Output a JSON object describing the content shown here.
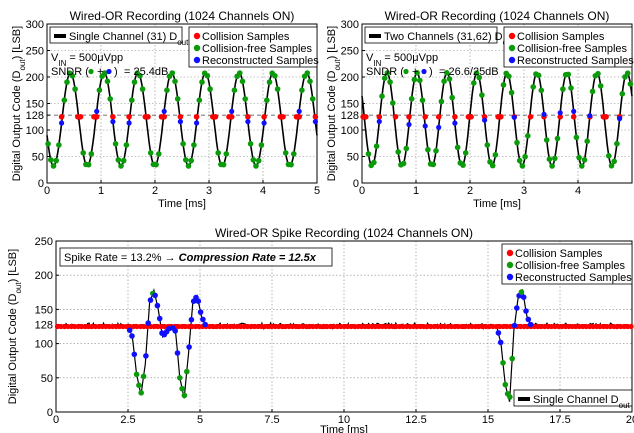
{
  "chart_data": [
    {
      "type": "line",
      "title": "Wired-OR Recording (1024 Channels ON)",
      "xlabel": "Time [ms]",
      "ylabel": "Digital Output Code (D_out) [LSB]",
      "xlim": [
        0,
        5
      ],
      "ylim": [
        0,
        300
      ],
      "xticks": [
        "0",
        "1",
        "2",
        "3",
        "4",
        "5"
      ],
      "yticks": [
        "0",
        "50",
        "100",
        "128",
        "150",
        "200",
        "250",
        "300"
      ],
      "grid": true,
      "reference_line": 128,
      "signal": {
        "type": "sine",
        "offset": 120,
        "amplitude": 88,
        "frequency_khz": 1.6,
        "phase_deg": 200
      },
      "legend": {
        "position": "top-left",
        "entries": [
          {
            "label": "Single Channel (31) D",
            "sub": "out",
            "color": "#000000"
          }
        ]
      },
      "legend2": {
        "position": "top-right",
        "entries": [
          {
            "label": "Collision Samples",
            "color": "#ff0000"
          },
          {
            "label": "Collision-free Samples",
            "color": "#0a9a0a"
          },
          {
            "label": "Reconstructed Samples",
            "color": "#1010ff"
          }
        ]
      },
      "annotation": {
        "vin": "V",
        "vin_sub": "IN",
        "vin_rest": " = 500μVpp",
        "sndr_label": "SNDR (",
        "sndr_close": ")",
        "sndr_value": "= 25.4dB"
      },
      "series": [
        {
          "name": "Single Channel (31) D_out",
          "kind": "line",
          "color": "#000000"
        },
        {
          "name": "Collision Samples",
          "kind": "scatter",
          "color": "#ff0000",
          "y_constant": 125
        },
        {
          "name": "Collision-free Samples",
          "kind": "scatter",
          "color": "#0a9a0a"
        },
        {
          "name": "Reconstructed Samples",
          "kind": "scatter",
          "color": "#1010ff"
        }
      ]
    },
    {
      "type": "line",
      "title": "Wired-OR Recording (1024 Channels ON)",
      "xlabel": "Time [ms]",
      "ylabel": "Digital Output Code (D_out) [LSB]",
      "xlim": [
        0,
        5
      ],
      "ylim": [
        0,
        300
      ],
      "xticks": [
        "0",
        "1",
        "2",
        "3",
        "4"
      ],
      "yticks": [
        "0",
        "50",
        "100",
        "128",
        "150",
        "200",
        "250",
        "300"
      ],
      "grid": true,
      "reference_line": 128,
      "signal": {
        "type": "sine",
        "offset": 120,
        "amplitude": 88,
        "frequency_khz": 1.8,
        "phase_deg": 150
      },
      "legend": {
        "position": "top-left",
        "entries": [
          {
            "label": "Two Channels (31,62) D",
            "sub": "out",
            "color": "#000000"
          }
        ]
      },
      "legend2": {
        "position": "top-right",
        "entries": [
          {
            "label": "Collision Samples",
            "color": "#ff0000"
          },
          {
            "label": "Collision-free Samples",
            "color": "#0a9a0a"
          },
          {
            "label": "Reconstructed Samples",
            "color": "#1010ff"
          }
        ]
      },
      "annotation": {
        "vin": "V",
        "vin_sub": "IN",
        "vin_rest": " = 500μVpp",
        "sndr_label": "SNDR (",
        "sndr_close": ")",
        "sndr_value": "= 26.6/25dB"
      },
      "series": [
        {
          "name": "Two Channels (31,62) D_out",
          "kind": "line",
          "color": "#000000"
        },
        {
          "name": "Collision Samples",
          "kind": "scatter",
          "color": "#ff0000",
          "y_constant": 125
        },
        {
          "name": "Collision-free Samples",
          "kind": "scatter",
          "color": "#0a9a0a"
        },
        {
          "name": "Reconstructed Samples",
          "kind": "scatter",
          "color": "#1010ff"
        }
      ]
    },
    {
      "type": "line",
      "title": "Wired-OR Spike Recording (1024 Channels ON)",
      "xlabel": "Time [ms]",
      "ylabel": "Digital Output Code (D_out) [LSB]",
      "xlim": [
        0,
        20
      ],
      "ylim": [
        0,
        250
      ],
      "xticks": [
        "0",
        "2.5",
        "5",
        "7.5",
        "10",
        "12.5",
        "15",
        "17.5",
        "20"
      ],
      "yticks": [
        "0",
        "50",
        "100",
        "128",
        "150",
        "200",
        "250"
      ],
      "grid": true,
      "reference_line": 128,
      "baseline": 126,
      "spikes": [
        {
          "t": [
            2.5,
            2.65,
            2.8,
            2.95,
            3.1,
            3.25,
            3.4,
            3.55,
            3.7,
            3.85,
            4.0
          ],
          "y": [
            126,
            110,
            55,
            25,
            70,
            160,
            178,
            150,
            110,
            118,
            126
          ]
        },
        {
          "t": [
            4.0,
            4.15,
            4.3,
            4.45,
            4.6,
            4.75,
            4.9,
            5.05,
            5.2
          ],
          "y": [
            126,
            118,
            50,
            20,
            85,
            160,
            170,
            140,
            126
          ]
        },
        {
          "t": [
            15.3,
            15.45,
            15.6,
            15.75,
            15.9,
            16.05,
            16.2,
            16.35,
            16.5
          ],
          "y": [
            126,
            100,
            40,
            15,
            120,
            168,
            178,
            140,
            126
          ]
        }
      ],
      "annotation_box": {
        "prefix": "Spike Rate = 13.2% → ",
        "bold": "Compression Rate = 12.5x"
      },
      "legend": {
        "position": "top-right",
        "entries": [
          {
            "label": "Collision Samples",
            "color": "#ff0000"
          },
          {
            "label": "Collision-free Samples",
            "color": "#0a9a0a"
          },
          {
            "label": "Reconstructed Samples",
            "color": "#1010ff"
          }
        ]
      },
      "legend2": {
        "position": "bottom-right",
        "entries": [
          {
            "label": "Single Channel D",
            "sub": "out",
            "color": "#000000"
          }
        ]
      },
      "series": [
        {
          "name": "Single Channel D_out",
          "kind": "line",
          "color": "#000000"
        },
        {
          "name": "Collision Samples",
          "kind": "scatter",
          "color": "#ff0000",
          "y_constant": 125
        },
        {
          "name": "Collision-free Samples",
          "kind": "scatter",
          "color": "#0a9a0a"
        },
        {
          "name": "Reconstructed Samples",
          "kind": "scatter",
          "color": "#1010ff"
        }
      ]
    }
  ]
}
